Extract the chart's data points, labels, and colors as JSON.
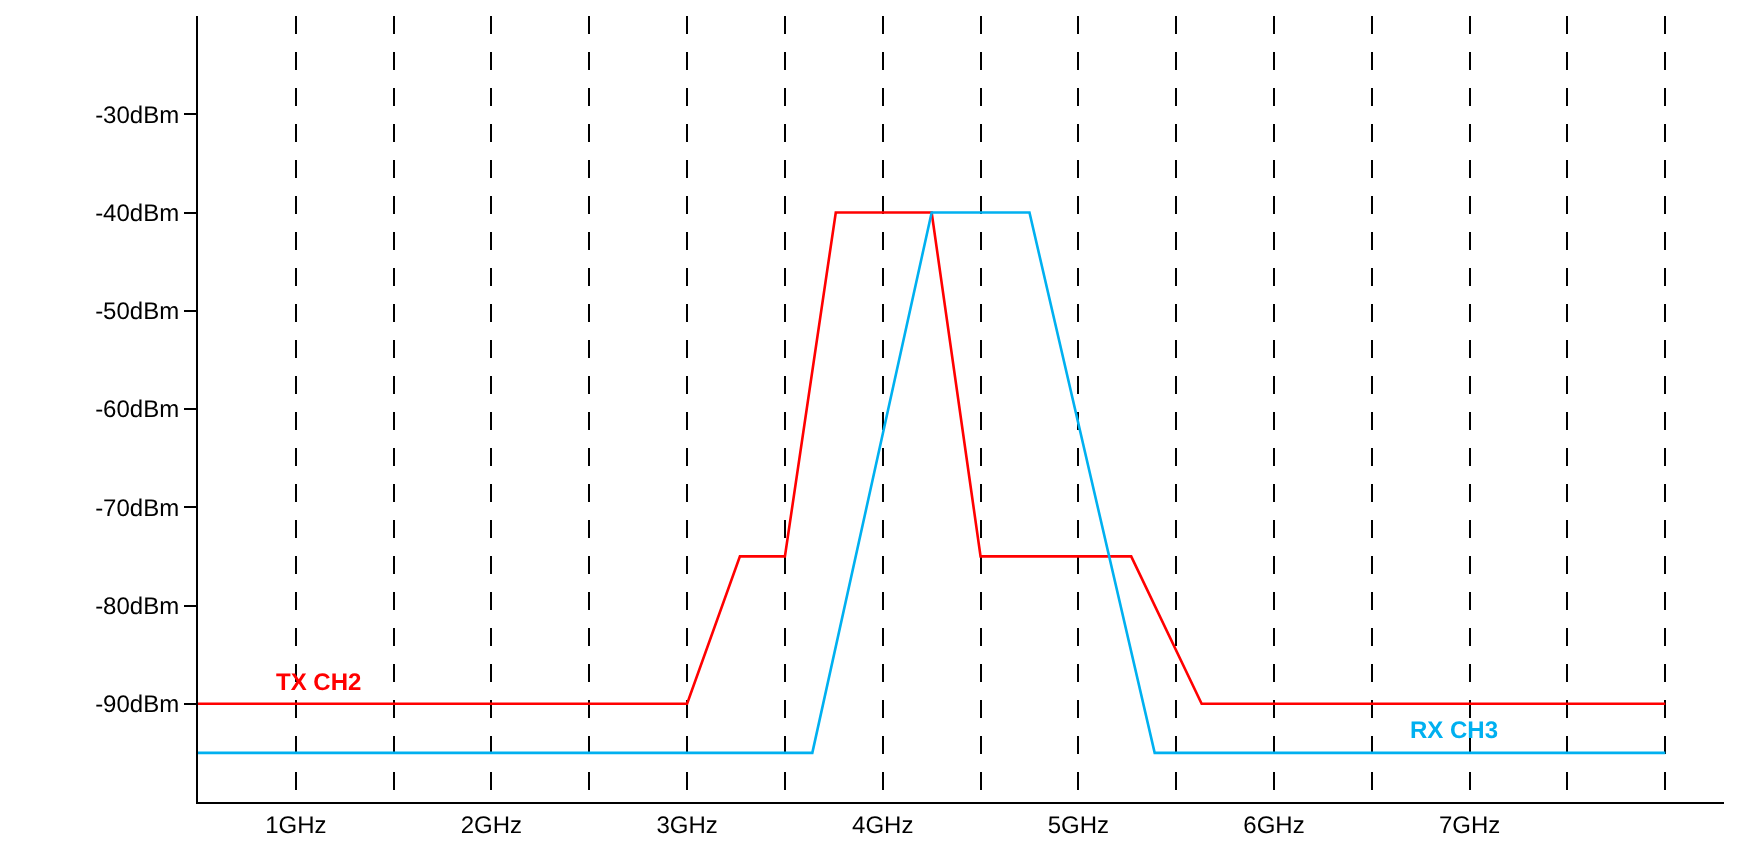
{
  "chart_data": {
    "type": "line",
    "series": [
      {
        "name": "TX CH2",
        "color": "#ff0000",
        "x": [
          0.5,
          3.0,
          3.27,
          3.5,
          3.76,
          4.25,
          4.5,
          5.27,
          5.63,
          8.0
        ],
        "values": [
          -90,
          -90,
          -75,
          -75,
          -40,
          -40,
          -75,
          -75,
          -90,
          -90
        ]
      },
      {
        "name": "RX CH3",
        "color": "#00b0f0",
        "x": [
          0.5,
          3.64,
          4.25,
          4.75,
          5.39,
          8.0
        ],
        "values": [
          -95,
          -95,
          -40,
          -40,
          -95,
          -95
        ]
      }
    ],
    "xlim": [
      0.5,
      8.3
    ],
    "ylim": [
      -100,
      -20
    ],
    "xticks": [
      {
        "value": 1,
        "label": "1GHz"
      },
      {
        "value": 1.5,
        "label": null
      },
      {
        "value": 2,
        "label": "2GHz"
      },
      {
        "value": 2.5,
        "label": null
      },
      {
        "value": 3,
        "label": "3GHz"
      },
      {
        "value": 3.5,
        "label": null
      },
      {
        "value": 4,
        "label": "4GHz"
      },
      {
        "value": 4.5,
        "label": null
      },
      {
        "value": 5,
        "label": "5GHz"
      },
      {
        "value": 5.5,
        "label": null
      },
      {
        "value": 6,
        "label": "6GHz"
      },
      {
        "value": 6.5,
        "label": null
      },
      {
        "value": 7,
        "label": "7GHz"
      },
      {
        "value": 7.5,
        "label": null
      },
      {
        "value": 8,
        "label": null
      }
    ],
    "yticks": [
      {
        "value": -30,
        "label": "-30dBm"
      },
      {
        "value": -40,
        "label": "-40dBm"
      },
      {
        "value": -50,
        "label": "-50dBm"
      },
      {
        "value": -60,
        "label": "-60dBm"
      },
      {
        "value": -70,
        "label": "-70dBm"
      },
      {
        "value": -80,
        "label": "-80dBm"
      },
      {
        "value": -90,
        "label": "-90dBm"
      }
    ],
    "grid": "x",
    "legend": false,
    "marker": "none",
    "line_style": "solid"
  }
}
